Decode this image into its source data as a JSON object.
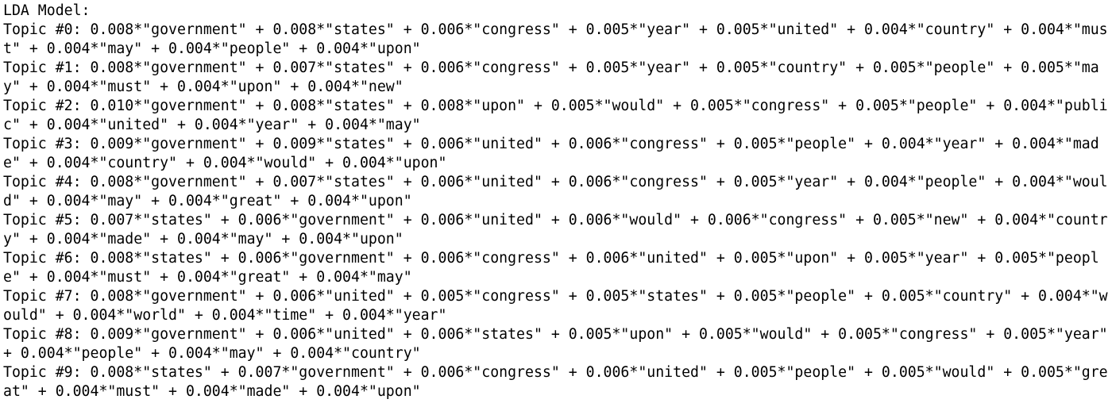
{
  "header": {
    "title": "LDA Model:"
  },
  "topics": [
    "Topic #0: 0.008*\"government\" + 0.008*\"states\" + 0.006*\"congress\" + 0.005*\"year\" + 0.005*\"united\" + 0.004*\"country\" + 0.004*\"must\" + 0.004*\"may\" + 0.004*\"people\" + 0.004*\"upon\"",
    "Topic #1: 0.008*\"government\" + 0.007*\"states\" + 0.006*\"congress\" + 0.005*\"year\" + 0.005*\"country\" + 0.005*\"people\" + 0.005*\"may\" + 0.004*\"must\" + 0.004*\"upon\" + 0.004*\"new\"",
    "Topic #2: 0.010*\"government\" + 0.008*\"states\" + 0.008*\"upon\" + 0.005*\"would\" + 0.005*\"congress\" + 0.005*\"people\" + 0.004*\"public\" + 0.004*\"united\" + 0.004*\"year\" + 0.004*\"may\"",
    "Topic #3: 0.009*\"government\" + 0.009*\"states\" + 0.006*\"united\" + 0.006*\"congress\" + 0.005*\"people\" + 0.004*\"year\" + 0.004*\"made\" + 0.004*\"country\" + 0.004*\"would\" + 0.004*\"upon\"",
    "Topic #4: 0.008*\"government\" + 0.007*\"states\" + 0.006*\"united\" + 0.006*\"congress\" + 0.005*\"year\" + 0.004*\"people\" + 0.004*\"would\" + 0.004*\"may\" + 0.004*\"great\" + 0.004*\"upon\"",
    "Topic #5: 0.007*\"states\" + 0.006*\"government\" + 0.006*\"united\" + 0.006*\"would\" + 0.006*\"congress\" + 0.005*\"new\" + 0.004*\"country\" + 0.004*\"made\" + 0.004*\"may\" + 0.004*\"upon\"",
    "Topic #6: 0.008*\"states\" + 0.006*\"government\" + 0.006*\"congress\" + 0.006*\"united\" + 0.005*\"upon\" + 0.005*\"year\" + 0.005*\"people\" + 0.004*\"must\" + 0.004*\"great\" + 0.004*\"may\"",
    "Topic #7: 0.008*\"government\" + 0.006*\"united\" + 0.005*\"congress\" + 0.005*\"states\" + 0.005*\"people\" + 0.005*\"country\" + 0.004*\"would\" + 0.004*\"world\" + 0.004*\"time\" + 0.004*\"year\"",
    "Topic #8: 0.009*\"government\" + 0.006*\"united\" + 0.006*\"states\" + 0.005*\"upon\" + 0.005*\"would\" + 0.005*\"congress\" + 0.005*\"year\" + 0.004*\"people\" + 0.004*\"may\" + 0.004*\"country\"",
    "Topic #9: 0.008*\"states\" + 0.007*\"government\" + 0.006*\"congress\" + 0.006*\"united\" + 0.005*\"people\" + 0.005*\"would\" + 0.005*\"great\" + 0.004*\"must\" + 0.004*\"made\" + 0.004*\"upon\""
  ]
}
